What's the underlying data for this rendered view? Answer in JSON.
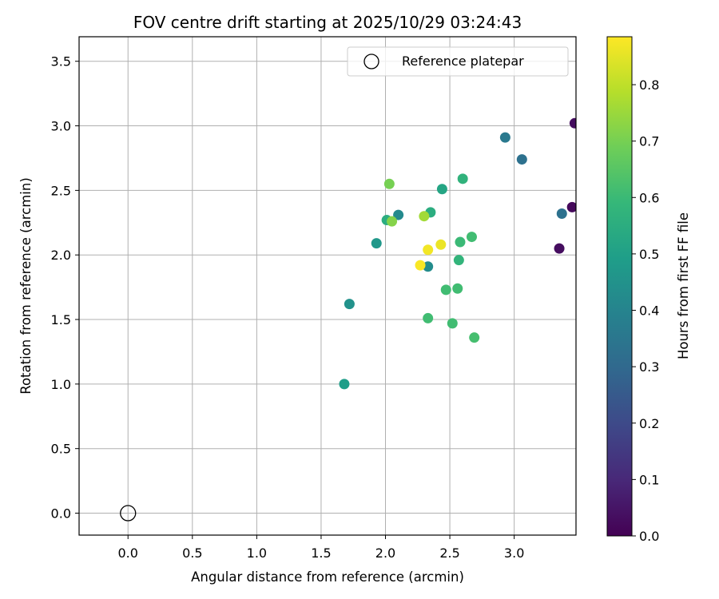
{
  "chart_data": {
    "type": "scatter",
    "title": "FOV centre drift starting at 2025/10/29 03:24:43",
    "xlabel": "Angular distance from reference (arcmin)",
    "ylabel": "Rotation from reference (arcmin)",
    "xlim": [
      -0.38,
      3.48
    ],
    "ylim": [
      -0.17,
      3.69
    ],
    "xticks": [
      0.0,
      0.5,
      1.0,
      1.5,
      2.0,
      2.5,
      3.0
    ],
    "xtick_labels": [
      "0.0",
      "0.5",
      "1.0",
      "1.5",
      "2.0",
      "2.5",
      "3.0"
    ],
    "yticks": [
      0.0,
      0.5,
      1.0,
      1.5,
      2.0,
      2.5,
      3.0,
      3.5
    ],
    "ytick_labels": [
      "0.0",
      "0.5",
      "1.0",
      "1.5",
      "2.0",
      "2.5",
      "3.0",
      "3.5"
    ],
    "grid": true,
    "legend": {
      "position": "top-right",
      "entries": [
        "Reference platepar"
      ]
    },
    "reference_point": {
      "x": 0.0,
      "y": 0.0,
      "label": "Reference platepar"
    },
    "colorbar": {
      "label": "Hours from first FF file",
      "range": [
        0.0,
        0.885
      ],
      "ticks": [
        0.0,
        0.1,
        0.2,
        0.3,
        0.4,
        0.5,
        0.6,
        0.7,
        0.8
      ],
      "tick_labels": [
        "0.0",
        "0.1",
        "0.2",
        "0.3",
        "0.4",
        "0.5",
        "0.6",
        "0.7",
        "0.8"
      ],
      "colormap": "viridis"
    },
    "points": [
      {
        "x": 3.47,
        "y": 3.02,
        "hours": 0.03
      },
      {
        "x": 3.45,
        "y": 2.37,
        "hours": 0.02
      },
      {
        "x": 3.35,
        "y": 2.05,
        "hours": 0.03
      },
      {
        "x": 3.37,
        "y": 2.32,
        "hours": 0.33
      },
      {
        "x": 3.06,
        "y": 2.74,
        "hours": 0.33
      },
      {
        "x": 2.93,
        "y": 2.91,
        "hours": 0.36
      },
      {
        "x": 2.1,
        "y": 2.31,
        "hours": 0.42
      },
      {
        "x": 2.33,
        "y": 1.91,
        "hours": 0.43
      },
      {
        "x": 1.72,
        "y": 1.62,
        "hours": 0.45
      },
      {
        "x": 1.93,
        "y": 2.09,
        "hours": 0.47
      },
      {
        "x": 1.68,
        "y": 1.0,
        "hours": 0.49
      },
      {
        "x": 2.44,
        "y": 2.51,
        "hours": 0.52
      },
      {
        "x": 2.35,
        "y": 2.33,
        "hours": 0.55
      },
      {
        "x": 2.01,
        "y": 2.27,
        "hours": 0.55
      },
      {
        "x": 2.6,
        "y": 2.59,
        "hours": 0.57
      },
      {
        "x": 2.57,
        "y": 1.96,
        "hours": 0.58
      },
      {
        "x": 2.58,
        "y": 2.1,
        "hours": 0.6
      },
      {
        "x": 2.67,
        "y": 2.14,
        "hours": 0.61
      },
      {
        "x": 2.47,
        "y": 1.73,
        "hours": 0.61
      },
      {
        "x": 2.56,
        "y": 1.74,
        "hours": 0.61
      },
      {
        "x": 2.33,
        "y": 1.51,
        "hours": 0.61
      },
      {
        "x": 2.52,
        "y": 1.47,
        "hours": 0.61
      },
      {
        "x": 2.69,
        "y": 1.36,
        "hours": 0.62
      },
      {
        "x": 2.03,
        "y": 2.55,
        "hours": 0.7
      },
      {
        "x": 2.05,
        "y": 2.26,
        "hours": 0.72
      },
      {
        "x": 2.3,
        "y": 2.3,
        "hours": 0.76
      },
      {
        "x": 2.43,
        "y": 2.08,
        "hours": 0.86
      },
      {
        "x": 2.33,
        "y": 2.04,
        "hours": 0.87
      },
      {
        "x": 2.27,
        "y": 1.92,
        "hours": 0.88
      }
    ]
  }
}
